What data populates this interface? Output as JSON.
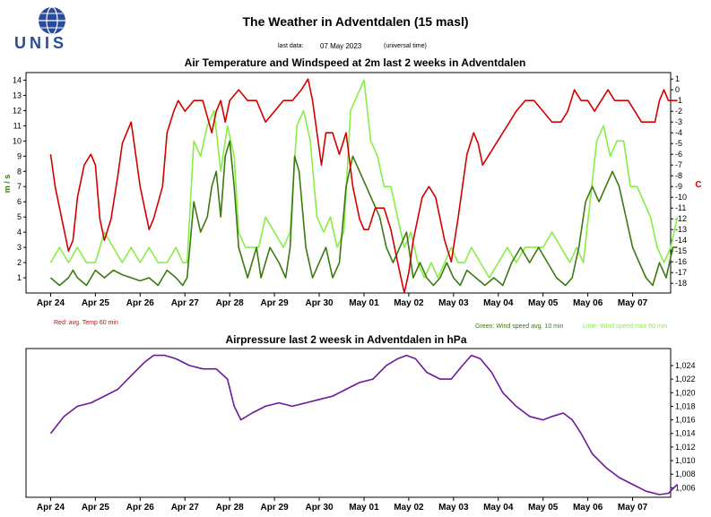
{
  "header": {
    "logo_text": "UNIS",
    "title": "The Weather in Adventdalen (15 masl)",
    "last_data_label": "last data:",
    "last_data_date": "07 May 2023",
    "timezone_note": "(universal time)"
  },
  "colors": {
    "temperature": "#d40000",
    "wind_avg": "#3a7a10",
    "wind_max": "#88ee44",
    "pressure": "#6a1a9a",
    "logo": "#2a4c9c"
  },
  "chart_data": [
    {
      "type": "line",
      "title": "Air Temperature and Windspeed at 2m last 2 weeks in Adventdalen",
      "ylabel_left": "m / s",
      "ylabel_right": "C",
      "x_ticks": [
        "Apr 24",
        "Apr 25",
        "Apr 26",
        "Apr 27",
        "Apr 28",
        "Apr 29",
        "Apr 30",
        "May 01",
        "May 02",
        "May 03",
        "May 04",
        "May 05",
        "May 06",
        "May 07"
      ],
      "x_range_days": [
        0,
        14
      ],
      "ylim_left": [
        0,
        14.5
      ],
      "yticks_left": [
        1,
        2,
        3,
        4,
        5,
        6,
        7,
        8,
        9,
        10,
        11,
        12,
        13,
        14
      ],
      "ylim_right": [
        -18.9,
        1.6
      ],
      "yticks_right": [
        1,
        0,
        -1,
        -2,
        -3,
        -4,
        -5,
        -6,
        -7,
        -8,
        -9,
        -10,
        -11,
        -12,
        -13,
        -14,
        -15,
        -16,
        -17,
        -18
      ],
      "yticks_right_labels": [
        "1",
        "0",
        "-1",
        "-2",
        "-3",
        "-4",
        "-5",
        "-6",
        "-7",
        "-8",
        "-9",
        "-10",
        "-11",
        "-12",
        "-13",
        "-14",
        "-15",
        "-16",
        "-17",
        "-18"
      ],
      "grid": false,
      "legend": [
        {
          "text": "Red: avg. Temp 60 min",
          "color": "#d40000"
        },
        {
          "text": "Green: Wind speed avg. 10 min",
          "color": "#3a7a10"
        },
        {
          "text": "Lime: Wind speed max 60 min",
          "color": "#88ee44"
        }
      ],
      "series": [
        {
          "name": "avg. Temp 60 min",
          "axis": "right",
          "color": "#d40000",
          "x": [
            0,
            0.1,
            0.25,
            0.4,
            0.5,
            0.6,
            0.75,
            0.9,
            1.0,
            1.1,
            1.2,
            1.35,
            1.5,
            1.6,
            1.7,
            1.8,
            1.9,
            2.0,
            2.1,
            2.2,
            2.3,
            2.5,
            2.6,
            2.75,
            2.85,
            3.0,
            3.2,
            3.4,
            3.6,
            3.7,
            3.8,
            3.9,
            4.0,
            4.2,
            4.4,
            4.6,
            4.8,
            5.0,
            5.2,
            5.4,
            5.6,
            5.75,
            5.85,
            5.95,
            6.05,
            6.15,
            6.3,
            6.45,
            6.6,
            6.75,
            6.9,
            7.0,
            7.1,
            7.25,
            7.45,
            7.6,
            7.75,
            7.9,
            8.0,
            8.1,
            8.2,
            8.3,
            8.45,
            8.6,
            8.8,
            8.95,
            9.1,
            9.2,
            9.3,
            9.45,
            9.55,
            9.65,
            9.8,
            9.95,
            10.1,
            10.25,
            10.4,
            10.6,
            10.8,
            11.0,
            11.2,
            11.4,
            11.55,
            11.7,
            11.85,
            12.0,
            12.15,
            12.3,
            12.45,
            12.6,
            12.75,
            12.9,
            13.05,
            13.2,
            13.35,
            13.5,
            13.6,
            13.7,
            13.8,
            13.9,
            14.0
          ],
          "y": [
            -6,
            -9,
            -12,
            -15,
            -14,
            -10,
            -7,
            -6,
            -7,
            -12,
            -14,
            -12,
            -8,
            -5,
            -4,
            -3,
            -6,
            -9,
            -11,
            -13,
            -12,
            -9,
            -4,
            -2,
            -1,
            -2,
            -1,
            -1,
            -4,
            -2,
            -1,
            -3,
            -1,
            0,
            -1,
            -1,
            -3,
            -2,
            -1,
            -1,
            0,
            1,
            -1,
            -4,
            -7,
            -4,
            -4,
            -6,
            -4,
            -9,
            -12,
            -13,
            -13,
            -11,
            -11,
            -13,
            -16,
            -19,
            -17,
            -14,
            -12,
            -10,
            -9,
            -10,
            -14,
            -16,
            -12,
            -9,
            -6,
            -4,
            -5,
            -7,
            -6,
            -5,
            -4,
            -3,
            -2,
            -1,
            -1,
            -2,
            -3,
            -3,
            -2,
            0,
            -1,
            -1,
            -2,
            -1,
            0,
            -1,
            -1,
            -1,
            -2,
            -3,
            -3,
            -3,
            -1,
            0,
            -1,
            -1,
            -1
          ]
        },
        {
          "name": "Wind speed avg. 10 min",
          "axis": "left",
          "color": "#3a7a10",
          "x": [
            0,
            0.2,
            0.4,
            0.5,
            0.6,
            0.8,
            1.0,
            1.2,
            1.4,
            1.6,
            1.8,
            2.0,
            2.2,
            2.4,
            2.6,
            2.8,
            2.95,
            3.05,
            3.2,
            3.35,
            3.5,
            3.6,
            3.7,
            3.8,
            3.9,
            4.0,
            4.1,
            4.2,
            4.3,
            4.4,
            4.5,
            4.6,
            4.7,
            4.9,
            5.1,
            5.25,
            5.35,
            5.45,
            5.55,
            5.7,
            5.85,
            6.0,
            6.15,
            6.3,
            6.45,
            6.6,
            6.75,
            6.9,
            7.05,
            7.2,
            7.35,
            7.5,
            7.65,
            7.8,
            7.95,
            8.1,
            8.25,
            8.4,
            8.55,
            8.7,
            8.85,
            9.0,
            9.15,
            9.3,
            9.5,
            9.7,
            9.9,
            10.1,
            10.3,
            10.5,
            10.7,
            10.9,
            11.1,
            11.3,
            11.5,
            11.65,
            11.8,
            11.95,
            12.1,
            12.25,
            12.4,
            12.55,
            12.7,
            12.85,
            13.0,
            13.15,
            13.3,
            13.45,
            13.6,
            13.75,
            13.9,
            14.0
          ],
          "y": [
            1,
            0.5,
            1,
            1.5,
            1,
            0.5,
            1.5,
            1,
            1.5,
            1.2,
            1,
            0.8,
            1,
            0.5,
            1.5,
            1,
            0.5,
            1,
            6,
            4,
            5,
            7,
            8,
            5,
            9,
            10,
            7,
            3,
            2,
            1,
            2,
            3,
            1,
            3,
            2,
            1,
            3,
            9,
            8,
            3,
            1,
            2,
            3,
            1,
            2,
            7,
            9,
            8,
            7,
            6,
            5,
            3,
            2,
            3,
            4,
            1,
            2,
            1,
            0.5,
            1,
            2,
            1,
            0.5,
            1.5,
            1,
            0.5,
            1,
            0.5,
            2,
            3,
            2,
            3,
            2,
            1,
            0.5,
            1,
            3,
            6,
            7,
            6,
            7,
            8,
            7,
            5,
            3,
            2,
            1,
            0.5,
            2,
            1,
            3,
            3
          ]
        },
        {
          "name": "Wind speed max 60 min",
          "axis": "left",
          "color": "#88ee44",
          "x": [
            0,
            0.2,
            0.4,
            0.6,
            0.8,
            1.0,
            1.2,
            1.4,
            1.6,
            1.8,
            2.0,
            2.2,
            2.4,
            2.6,
            2.8,
            2.95,
            3.05,
            3.2,
            3.35,
            3.5,
            3.65,
            3.8,
            3.95,
            4.1,
            4.2,
            4.35,
            4.5,
            4.65,
            4.8,
            5.0,
            5.2,
            5.35,
            5.5,
            5.65,
            5.8,
            5.95,
            6.1,
            6.25,
            6.4,
            6.55,
            6.7,
            6.85,
            7.0,
            7.15,
            7.3,
            7.45,
            7.6,
            7.75,
            7.9,
            8.05,
            8.2,
            8.35,
            8.5,
            8.65,
            8.8,
            8.95,
            9.1,
            9.25,
            9.4,
            9.6,
            9.8,
            10.0,
            10.2,
            10.4,
            10.6,
            10.8,
            11.0,
            11.2,
            11.4,
            11.6,
            11.75,
            11.9,
            12.05,
            12.2,
            12.35,
            12.5,
            12.65,
            12.8,
            12.95,
            13.1,
            13.25,
            13.4,
            13.55,
            13.7,
            13.85,
            14.0
          ],
          "y": [
            2,
            3,
            2,
            3,
            2,
            2,
            4,
            3,
            2,
            3,
            2,
            3,
            2,
            2,
            3,
            2,
            2,
            10,
            9,
            11,
            12,
            8,
            11,
            9,
            4,
            3,
            3,
            3,
            5,
            4,
            3,
            4,
            11,
            12,
            10,
            5,
            4,
            5,
            3,
            4,
            12,
            13,
            14,
            10,
            9,
            7,
            7,
            5,
            3,
            4,
            2,
            1,
            2,
            1,
            2,
            3,
            2,
            2,
            3,
            2,
            1,
            2,
            3,
            2,
            3,
            3,
            3,
            4,
            3,
            2,
            3,
            2,
            6,
            10,
            11,
            9,
            10,
            10,
            7,
            7,
            6,
            5,
            3,
            2,
            3,
            5
          ]
        }
      ]
    },
    {
      "type": "line",
      "title": "Airpressure last  2 weesk in Adventdalen in hPa",
      "x_ticks": [
        "Apr 24",
        "Apr 25",
        "Apr 26",
        "Apr 27",
        "Apr 28",
        "Apr 29",
        "Apr 30",
        "May 01",
        "May 02",
        "May 03",
        "May 04",
        "May 05",
        "May 06",
        "May 07"
      ],
      "x_range_days": [
        0,
        14
      ],
      "ylim": [
        1004.6,
        1026.5
      ],
      "yticks": [
        1006,
        1008,
        1010,
        1012,
        1014,
        1016,
        1018,
        1020,
        1022,
        1024
      ],
      "yticks_labels": [
        "1,006",
        "1,008",
        "1,010",
        "1,012",
        "1,014",
        "1,016",
        "1,018",
        "1,020",
        "1,022",
        "1,024"
      ],
      "grid": false,
      "series": [
        {
          "name": "Airpressure",
          "color": "#6a1a9a",
          "x": [
            0,
            0.3,
            0.6,
            0.9,
            1.2,
            1.5,
            1.8,
            2.1,
            2.3,
            2.55,
            2.8,
            3.1,
            3.4,
            3.7,
            3.95,
            4.1,
            4.25,
            4.5,
            4.8,
            5.1,
            5.4,
            5.7,
            6.0,
            6.3,
            6.6,
            6.9,
            7.2,
            7.5,
            7.75,
            7.95,
            8.15,
            8.4,
            8.7,
            8.95,
            9.2,
            9.4,
            9.6,
            9.85,
            10.1,
            10.4,
            10.7,
            11.0,
            11.2,
            11.45,
            11.65,
            11.85,
            12.1,
            12.4,
            12.7,
            13.0,
            13.3,
            13.6,
            13.8,
            14.0
          ],
          "y": [
            1014,
            1016.5,
            1018,
            1018.5,
            1019.5,
            1020.5,
            1022.5,
            1024.5,
            1025.5,
            1025.5,
            1025,
            1024,
            1023.5,
            1023.5,
            1022,
            1018,
            1016,
            1017,
            1018,
            1018.5,
            1018,
            1018.5,
            1019,
            1019.5,
            1020.5,
            1021.5,
            1022,
            1024,
            1025,
            1025.5,
            1025,
            1023,
            1022,
            1022,
            1024,
            1025.5,
            1025,
            1023,
            1020,
            1018,
            1016.5,
            1016,
            1016.5,
            1017,
            1016,
            1014,
            1011,
            1009,
            1007.5,
            1006.5,
            1005.5,
            1005,
            1005.2,
            1006.5
          ]
        }
      ]
    }
  ]
}
